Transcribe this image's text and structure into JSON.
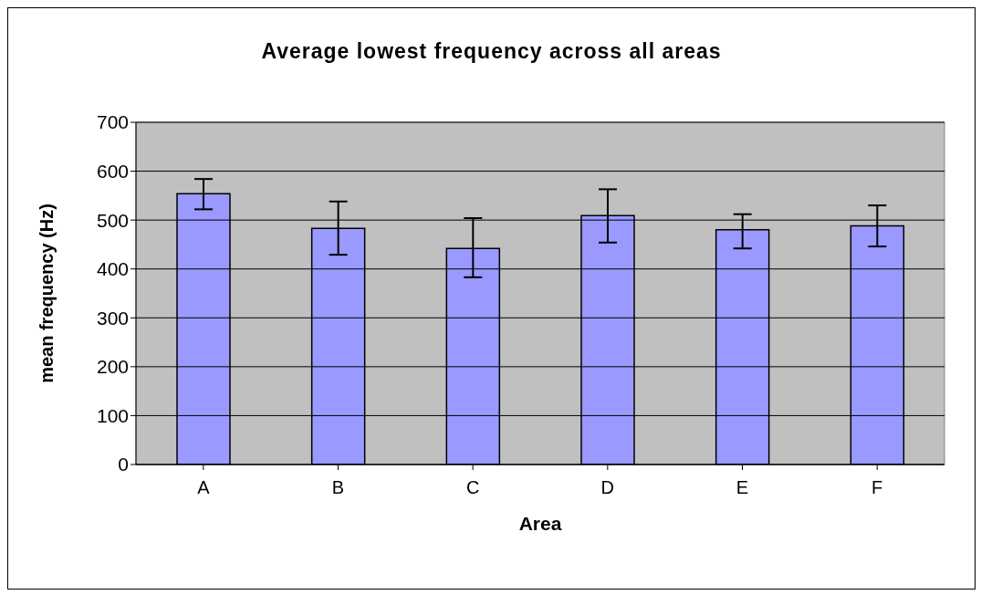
{
  "chart_data": {
    "type": "bar",
    "title": "Average lowest frequency across all areas",
    "xlabel": "Area",
    "ylabel": "mean frequency (Hz)",
    "categories": [
      "A",
      "B",
      "C",
      "D",
      "E",
      "F"
    ],
    "values": [
      554,
      483,
      442,
      509,
      480,
      488
    ],
    "errors": [
      [
        522,
        584
      ],
      [
        429,
        538
      ],
      [
        383,
        504
      ],
      [
        454,
        563
      ],
      [
        442,
        512
      ],
      [
        446,
        530
      ]
    ],
    "color": "#9999ff",
    "ylim": [
      0,
      700
    ],
    "yticks": [
      0,
      100,
      200,
      300,
      400,
      500,
      600,
      700
    ],
    "grid": "y"
  }
}
